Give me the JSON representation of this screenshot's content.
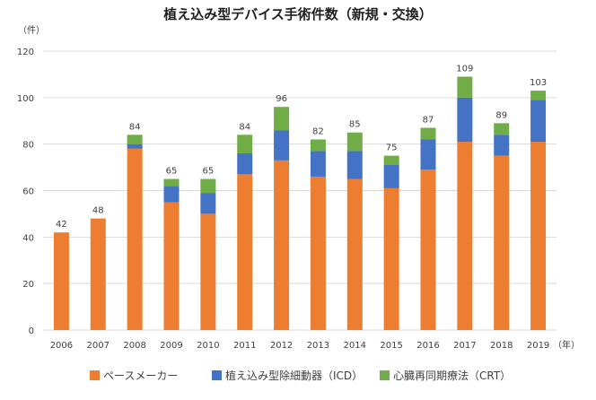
{
  "chart_data": {
    "type": "bar",
    "stacked": true,
    "title": "植え込み型デバイス手術件数（新規・交換）",
    "ylabel_unit": "（件）",
    "xlabel_unit": "（年）",
    "ylim": [
      0,
      120
    ],
    "yticks": [
      0,
      20,
      40,
      60,
      80,
      100,
      120
    ],
    "grid": true,
    "legend_position": "bottom",
    "categories": [
      "2006",
      "2007",
      "2008",
      "2009",
      "2010",
      "2011",
      "2012",
      "2013",
      "2014",
      "2015",
      "2016",
      "2017",
      "2018",
      "2019"
    ],
    "series": [
      {
        "name": "ペースメーカー",
        "color": "#ED7D31",
        "values": [
          42,
          48,
          78,
          55,
          50,
          67,
          73,
          66,
          65,
          61,
          69,
          81,
          75,
          81
        ]
      },
      {
        "name": "植え込み型除細動器（ICD）",
        "color": "#4472C4",
        "values": [
          0,
          0,
          2,
          7,
          9,
          9,
          13,
          11,
          12,
          10,
          13,
          19,
          9,
          18
        ]
      },
      {
        "name": "心臓再同期療法（CRT）",
        "color": "#70AD47",
        "values": [
          0,
          0,
          4,
          3,
          6,
          8,
          10,
          5,
          8,
          4,
          5,
          9,
          5,
          4
        ]
      }
    ],
    "totals": [
      42,
      48,
      84,
      65,
      65,
      84,
      96,
      82,
      85,
      75,
      87,
      109,
      89,
      103
    ]
  }
}
